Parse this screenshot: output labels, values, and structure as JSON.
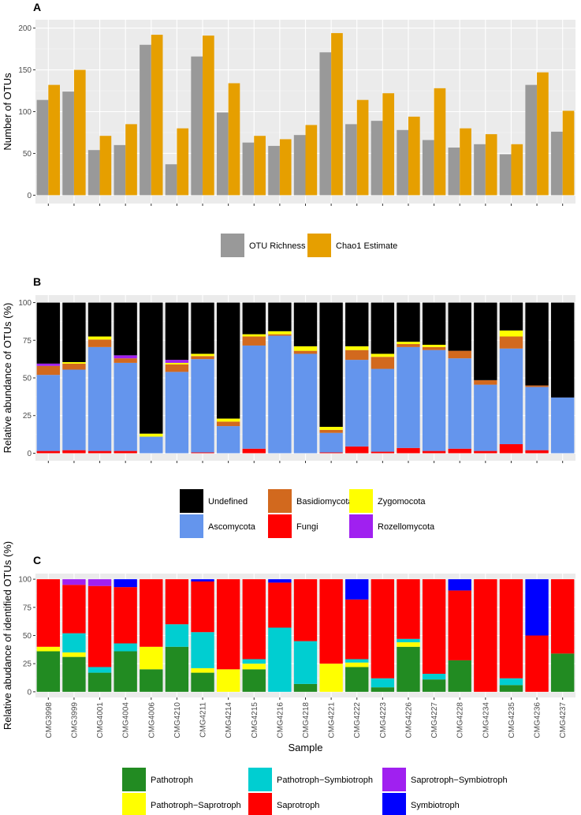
{
  "figure": {
    "samples": [
      "CMG3998",
      "CMG3999",
      "CMG4001",
      "CMG4004",
      "CMG4006",
      "CMG4210",
      "CMG4211",
      "CMG4214",
      "CMG4215",
      "CMG4216",
      "CMG4218",
      "CMG4221",
      "CMG4222",
      "CMG4223",
      "CMG4226",
      "CMG4227",
      "CMG4228",
      "CMG4234",
      "CMG4235",
      "CMG4236",
      "CMG4237"
    ],
    "xlabel": "Sample"
  },
  "chart_data": [
    {
      "panel": "A",
      "type": "bar",
      "ylabel": "Number of OTUs",
      "ylim": [
        0,
        200
      ],
      "yticks": [
        0,
        50,
        100,
        150,
        200
      ],
      "series": [
        {
          "name": "OTU Richness",
          "color": "#999999",
          "values": [
            114,
            124,
            54,
            60,
            180,
            37,
            166,
            99,
            63,
            59,
            72,
            171,
            85,
            89,
            78,
            66,
            57,
            61,
            49,
            132,
            76
          ]
        },
        {
          "name": "Chao1 Estimate",
          "color": "#E69F00",
          "values": [
            132,
            150,
            71,
            85,
            192,
            80,
            191,
            134,
            71,
            67,
            84,
            194,
            114,
            122,
            94,
            128,
            80,
            73,
            61,
            147,
            101
          ]
        }
      ]
    },
    {
      "panel": "B",
      "type": "bar",
      "stacked": true,
      "ylabel": "Relative abundance of OTUs (%)",
      "ylim": [
        0,
        100
      ],
      "yticks": [
        0,
        25,
        50,
        75,
        100
      ],
      "legend_order": [
        "Undefined",
        "Basidiomycota",
        "Zygomocota",
        "Ascomycota",
        "Fungi",
        "Rozellomycota"
      ],
      "series": [
        {
          "name": "Fungi",
          "color": "#FF0000",
          "values": [
            1.5,
            2,
            1.5,
            1.5,
            0,
            0,
            0.5,
            0,
            3,
            0,
            0,
            0.5,
            4.5,
            1,
            3.5,
            1.5,
            3,
            1.5,
            6,
            2,
            0
          ]
        },
        {
          "name": "Ascomycota",
          "color": "#6495ED",
          "values": [
            50.5,
            53.5,
            69,
            58.5,
            11,
            54,
            62,
            18,
            68.5,
            78,
            66,
            13,
            57.5,
            55,
            67,
            67,
            60,
            44,
            63.5,
            42,
            37
          ]
        },
        {
          "name": "Basidiomycota",
          "color": "#D2691E",
          "values": [
            6,
            4,
            5,
            3,
            0,
            5,
            2,
            3,
            6,
            1,
            2,
            2,
            6.5,
            8,
            2,
            2,
            5,
            3,
            8,
            1,
            0
          ]
        },
        {
          "name": "Zygomocota",
          "color": "#FFFF00",
          "values": [
            0,
            1,
            2,
            0,
            2,
            1,
            1.5,
            2,
            1.5,
            2,
            3,
            2,
            2.5,
            2,
            1.5,
            1.5,
            0,
            0,
            4,
            0,
            0
          ]
        },
        {
          "name": "Rozellomycota",
          "color": "#A020F0",
          "values": [
            1.5,
            0,
            0,
            2,
            0,
            2,
            0,
            0,
            0,
            0,
            0,
            0,
            0,
            0,
            0,
            0,
            0,
            0,
            0,
            0,
            0
          ]
        },
        {
          "name": "Undefined",
          "color": "#000000",
          "values": [
            40.5,
            39.5,
            22.5,
            35,
            87,
            38,
            34,
            77,
            21,
            19,
            29,
            82.5,
            29,
            34,
            26,
            28,
            32,
            51.5,
            18.5,
            55,
            63
          ]
        }
      ]
    },
    {
      "panel": "C",
      "type": "bar",
      "stacked": true,
      "ylabel": "Relative abudance of identified OTUs (%)",
      "ylim": [
        0,
        100
      ],
      "yticks": [
        0,
        25,
        50,
        75,
        100
      ],
      "legend_order": [
        "Pathotroph",
        "Pathotroph−Symbiotroph",
        "Saprotroph−Symbiotroph",
        "Pathotroph−Saprotroph",
        "Saprotroph",
        "Symbiotroph"
      ],
      "series": [
        {
          "name": "Pathotroph",
          "color": "#228B22",
          "values": [
            36,
            31,
            17,
            36,
            20,
            40,
            17,
            0,
            20,
            0,
            7,
            0,
            22,
            4,
            40,
            11,
            28,
            0,
            6,
            0,
            34
          ]
        },
        {
          "name": "Pathotroph−Saprotroph",
          "color": "#FFFF00",
          "values": [
            4,
            4,
            0,
            0,
            20,
            0,
            4,
            20,
            5,
            0,
            0,
            25,
            4,
            0,
            4,
            0,
            0,
            0,
            0,
            0,
            0
          ]
        },
        {
          "name": "Pathotroph−Symbiotroph",
          "color": "#00CED1",
          "values": [
            0,
            17,
            5,
            7,
            0,
            20,
            32,
            0,
            4,
            57,
            38,
            0,
            3,
            8,
            3,
            5,
            0,
            0,
            6,
            0,
            0
          ]
        },
        {
          "name": "Saprotroph",
          "color": "#FF0000",
          "values": [
            60,
            43,
            72,
            50,
            60,
            40,
            45,
            80,
            71,
            40,
            55,
            75,
            53,
            88,
            53,
            84,
            62,
            100,
            88,
            50,
            66
          ]
        },
        {
          "name": "Saprotroph−Symbiotroph",
          "color": "#A020F0",
          "values": [
            0,
            5,
            6,
            0,
            0,
            0,
            0,
            0,
            0,
            0,
            0,
            0,
            0,
            0,
            0,
            0,
            0,
            0,
            0,
            0,
            0
          ]
        },
        {
          "name": "Symbiotroph",
          "color": "#0000FF",
          "values": [
            0,
            0,
            0,
            7,
            0,
            0,
            2,
            0,
            0,
            3,
            0,
            0,
            18,
            0,
            0,
            0,
            10,
            0,
            0,
            50,
            0
          ]
        }
      ]
    }
  ]
}
